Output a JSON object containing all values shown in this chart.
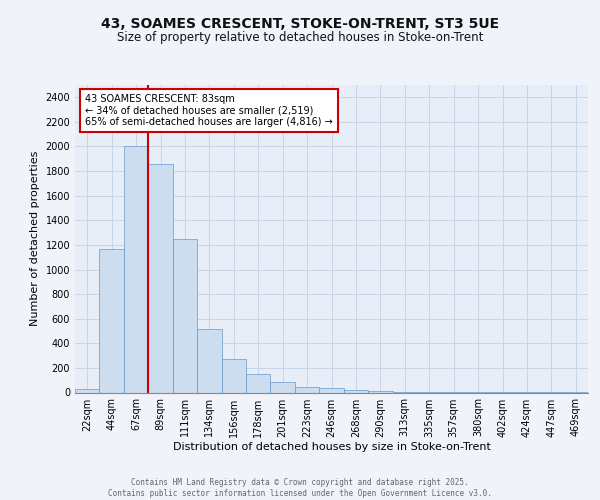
{
  "title1": "43, SOAMES CRESCENT, STOKE-ON-TRENT, ST3 5UE",
  "title2": "Size of property relative to detached houses in Stoke-on-Trent",
  "xlabel": "Distribution of detached houses by size in Stoke-on-Trent",
  "ylabel": "Number of detached properties",
  "bar_labels": [
    "22sqm",
    "44sqm",
    "67sqm",
    "89sqm",
    "111sqm",
    "134sqm",
    "156sqm",
    "178sqm",
    "201sqm",
    "223sqm",
    "246sqm",
    "268sqm",
    "290sqm",
    "313sqm",
    "335sqm",
    "357sqm",
    "380sqm",
    "402sqm",
    "424sqm",
    "447sqm",
    "469sqm"
  ],
  "bar_values": [
    25,
    1170,
    2000,
    1860,
    1245,
    520,
    275,
    150,
    88,
    42,
    38,
    18,
    12,
    8,
    5,
    3,
    2,
    2,
    1,
    1,
    2
  ],
  "bar_color": "#ccddf0",
  "bar_edge_color": "#6699cc",
  "grid_color": "#c8d4e8",
  "background_color": "#e8eef8",
  "fig_background": "#f0f4fa",
  "vline_color": "#cc0000",
  "vline_x_index": 2.5,
  "annotation_text": "43 SOAMES CRESCENT: 83sqm\n← 34% of detached houses are smaller (2,519)\n65% of semi-detached houses are larger (4,816) →",
  "annotation_box_color": "#ffffff",
  "annotation_box_edge": "#cc0000",
  "footer_text": "Contains HM Land Registry data © Crown copyright and database right 2025.\nContains public sector information licensed under the Open Government Licence v3.0.",
  "ylim": [
    0,
    2500
  ],
  "yticks": [
    0,
    200,
    400,
    600,
    800,
    1000,
    1200,
    1400,
    1600,
    1800,
    2000,
    2200,
    2400
  ],
  "title1_fontsize": 10,
  "title2_fontsize": 8.5,
  "ylabel_fontsize": 8,
  "xlabel_fontsize": 8,
  "tick_fontsize": 7,
  "footer_fontsize": 5.5,
  "annot_fontsize": 7
}
